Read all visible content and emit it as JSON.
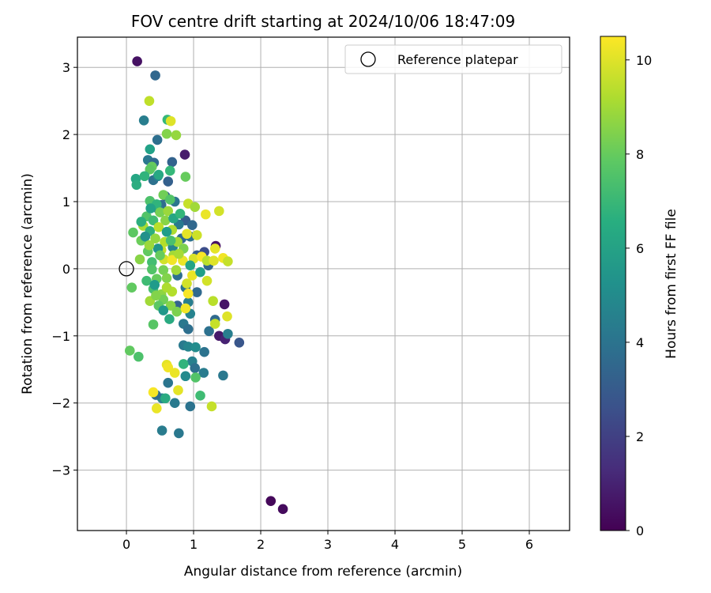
{
  "chart_data": {
    "type": "scatter",
    "title": "FOV centre drift starting at 2024/10/06 18:47:09",
    "xlabel": "Angular distance from reference (arcmin)",
    "ylabel": "Rotation from reference (arcmin)",
    "xlim": [
      -0.73,
      6.6
    ],
    "ylim": [
      -3.9,
      3.45
    ],
    "xticks": [
      0,
      1,
      2,
      3,
      4,
      5,
      6
    ],
    "yticks": [
      -3,
      -2,
      -1,
      0,
      1,
      2,
      3
    ],
    "xtick_labels": [
      "0",
      "1",
      "2",
      "3",
      "4",
      "5",
      "6"
    ],
    "ytick_labels": [
      "−3",
      "−2",
      "−1",
      "0",
      "1",
      "2",
      "3"
    ],
    "grid": true,
    "legend": {
      "placement": "upper-right",
      "entries": [
        "Reference platepar"
      ]
    },
    "reference": {
      "x": 0,
      "y": 0,
      "label": "Reference platepar"
    },
    "colorbar": {
      "label": "Hours from first FF file",
      "colormap": "viridis",
      "range": [
        0,
        10.5
      ],
      "ticks": [
        0,
        2,
        4,
        6,
        8,
        10
      ],
      "tick_labels": [
        "0",
        "2",
        "4",
        "6",
        "8",
        "10"
      ]
    },
    "points": [
      {
        "x": 0.16,
        "y": 3.09,
        "c": 0.5
      },
      {
        "x": 2.15,
        "y": -3.46,
        "c": 0.2
      },
      {
        "x": 2.33,
        "y": -3.58,
        "c": 0.3
      },
      {
        "x": 0.87,
        "y": 1.7,
        "c": 0.8
      },
      {
        "x": 1.33,
        "y": 0.34,
        "c": 0.5
      },
      {
        "x": 1.46,
        "y": -0.53,
        "c": 0.6
      },
      {
        "x": 1.38,
        "y": -1.0,
        "c": 0.7
      },
      {
        "x": 1.47,
        "y": -1.05,
        "c": 1.0
      },
      {
        "x": 1.68,
        "y": -1.1,
        "c": 2.8
      },
      {
        "x": 0.43,
        "y": 2.88,
        "c": 3.5
      },
      {
        "x": 0.26,
        "y": 2.21,
        "c": 4.5
      },
      {
        "x": 0.46,
        "y": 1.92,
        "c": 3.8
      },
      {
        "x": 0.32,
        "y": 1.62,
        "c": 4.2
      },
      {
        "x": 0.41,
        "y": 1.58,
        "c": 3.6
      },
      {
        "x": 0.68,
        "y": 1.59,
        "c": 3.3
      },
      {
        "x": 0.4,
        "y": 1.32,
        "c": 3.9
      },
      {
        "x": 0.47,
        "y": 1.38,
        "c": 4.6
      },
      {
        "x": 0.62,
        "y": 1.3,
        "c": 3.2
      },
      {
        "x": 0.58,
        "y": 1.08,
        "c": 3.4
      },
      {
        "x": 0.72,
        "y": 1.0,
        "c": 4.1
      },
      {
        "x": 0.52,
        "y": 0.95,
        "c": 3.7
      },
      {
        "x": 0.48,
        "y": 0.88,
        "c": 4.4
      },
      {
        "x": 0.88,
        "y": 0.72,
        "c": 3.1
      },
      {
        "x": 0.98,
        "y": 0.65,
        "c": 3.5
      },
      {
        "x": 0.78,
        "y": 0.66,
        "c": 4.3
      },
      {
        "x": 0.82,
        "y": 0.45,
        "c": 3.6
      },
      {
        "x": 0.69,
        "y": 0.32,
        "c": 4.8
      },
      {
        "x": 0.95,
        "y": 0.48,
        "c": 3.9
      },
      {
        "x": 1.05,
        "y": 0.2,
        "c": 3.0
      },
      {
        "x": 1.22,
        "y": 0.05,
        "c": 3.4
      },
      {
        "x": 1.16,
        "y": 0.25,
        "c": 2.5
      },
      {
        "x": 0.76,
        "y": -0.1,
        "c": 3.8
      },
      {
        "x": 0.88,
        "y": -0.28,
        "c": 4.0
      },
      {
        "x": 1.05,
        "y": -0.35,
        "c": 3.6
      },
      {
        "x": 0.92,
        "y": -0.5,
        "c": 4.5
      },
      {
        "x": 0.76,
        "y": -0.55,
        "c": 3.3
      },
      {
        "x": 0.95,
        "y": -0.67,
        "c": 4.7
      },
      {
        "x": 0.85,
        "y": -0.82,
        "c": 4.2
      },
      {
        "x": 0.92,
        "y": -0.9,
        "c": 3.8
      },
      {
        "x": 1.23,
        "y": -0.93,
        "c": 3.9
      },
      {
        "x": 1.32,
        "y": -0.76,
        "c": 3.6
      },
      {
        "x": 1.51,
        "y": -0.97,
        "c": 4.5
      },
      {
        "x": 0.85,
        "y": -1.14,
        "c": 4.3
      },
      {
        "x": 0.92,
        "y": -1.16,
        "c": 4.8
      },
      {
        "x": 1.03,
        "y": -1.17,
        "c": 5.1
      },
      {
        "x": 1.16,
        "y": -1.24,
        "c": 4.0
      },
      {
        "x": 0.98,
        "y": -1.38,
        "c": 4.6
      },
      {
        "x": 1.02,
        "y": -1.48,
        "c": 3.9
      },
      {
        "x": 1.15,
        "y": -1.55,
        "c": 4.4
      },
      {
        "x": 1.44,
        "y": -1.59,
        "c": 4.2
      },
      {
        "x": 0.88,
        "y": -1.6,
        "c": 5.0
      },
      {
        "x": 0.62,
        "y": -1.7,
        "c": 4.1
      },
      {
        "x": 0.53,
        "y": -1.93,
        "c": 4.7
      },
      {
        "x": 0.72,
        "y": -2.0,
        "c": 4.3
      },
      {
        "x": 0.95,
        "y": -2.05,
        "c": 4.0
      },
      {
        "x": 0.53,
        "y": -2.41,
        "c": 4.4
      },
      {
        "x": 0.78,
        "y": -2.45,
        "c": 4.2
      },
      {
        "x": 0.44,
        "y": -1.88,
        "c": 3.7
      },
      {
        "x": 0.61,
        "y": 2.22,
        "c": 7.0
      },
      {
        "x": 0.66,
        "y": 2.2,
        "c": 10.0
      },
      {
        "x": 0.34,
        "y": 2.5,
        "c": 9.5
      },
      {
        "x": 0.6,
        "y": 2.01,
        "c": 8.5
      },
      {
        "x": 0.74,
        "y": 1.99,
        "c": 8.8
      },
      {
        "x": 0.35,
        "y": 1.78,
        "c": 6.0
      },
      {
        "x": 0.38,
        "y": 1.52,
        "c": 8.0
      },
      {
        "x": 0.35,
        "y": 1.48,
        "c": 7.8
      },
      {
        "x": 0.14,
        "y": 1.34,
        "c": 6.2
      },
      {
        "x": 0.15,
        "y": 1.25,
        "c": 6.5
      },
      {
        "x": 0.27,
        "y": 1.38,
        "c": 6.8
      },
      {
        "x": 0.48,
        "y": 1.4,
        "c": 6.3
      },
      {
        "x": 0.65,
        "y": 1.46,
        "c": 7.0
      },
      {
        "x": 0.88,
        "y": 1.37,
        "c": 8.0
      },
      {
        "x": 0.35,
        "y": 1.01,
        "c": 7.5
      },
      {
        "x": 0.55,
        "y": 1.1,
        "c": 8.2
      },
      {
        "x": 0.65,
        "y": 1.03,
        "c": 7.6
      },
      {
        "x": 0.45,
        "y": 0.96,
        "c": 6.8
      },
      {
        "x": 0.92,
        "y": 0.97,
        "c": 9.6
      },
      {
        "x": 1.02,
        "y": 0.92,
        "c": 9.0
      },
      {
        "x": 1.18,
        "y": 0.81,
        "c": 10.2
      },
      {
        "x": 1.38,
        "y": 0.86,
        "c": 9.8
      },
      {
        "x": 0.3,
        "y": 0.78,
        "c": 7.6
      },
      {
        "x": 0.5,
        "y": 0.84,
        "c": 8.3
      },
      {
        "x": 0.62,
        "y": 0.86,
        "c": 8.9
      },
      {
        "x": 0.4,
        "y": 0.72,
        "c": 7.2
      },
      {
        "x": 0.58,
        "y": 0.72,
        "c": 8.6
      },
      {
        "x": 0.25,
        "y": 0.64,
        "c": 9.1
      },
      {
        "x": 0.1,
        "y": 0.54,
        "c": 7.8
      },
      {
        "x": 0.35,
        "y": 0.56,
        "c": 6.6
      },
      {
        "x": 0.48,
        "y": 0.62,
        "c": 9.4
      },
      {
        "x": 0.68,
        "y": 0.58,
        "c": 9.2
      },
      {
        "x": 0.76,
        "y": 0.4,
        "c": 9.0
      },
      {
        "x": 0.9,
        "y": 0.52,
        "c": 10.1
      },
      {
        "x": 1.05,
        "y": 0.5,
        "c": 9.7
      },
      {
        "x": 0.22,
        "y": 0.42,
        "c": 8.1
      },
      {
        "x": 0.43,
        "y": 0.45,
        "c": 8.8
      },
      {
        "x": 0.57,
        "y": 0.4,
        "c": 9.3
      },
      {
        "x": 0.32,
        "y": 0.26,
        "c": 7.9
      },
      {
        "x": 0.52,
        "y": 0.28,
        "c": 9.5
      },
      {
        "x": 0.7,
        "y": 0.2,
        "c": 9.0
      },
      {
        "x": 0.85,
        "y": 0.3,
        "c": 8.4
      },
      {
        "x": 0.2,
        "y": 0.14,
        "c": 8.6
      },
      {
        "x": 0.38,
        "y": 0.1,
        "c": 7.3
      },
      {
        "x": 0.56,
        "y": 0.14,
        "c": 9.8
      },
      {
        "x": 0.68,
        "y": 0.13,
        "c": 10.3
      },
      {
        "x": 0.84,
        "y": 0.12,
        "c": 10.2
      },
      {
        "x": 1.0,
        "y": 0.15,
        "c": 9.9
      },
      {
        "x": 1.12,
        "y": 0.18,
        "c": 10.4
      },
      {
        "x": 1.2,
        "y": 0.12,
        "c": 9.4
      },
      {
        "x": 1.3,
        "y": 0.12,
        "c": 10.0
      },
      {
        "x": 1.44,
        "y": 0.16,
        "c": 10.3
      },
      {
        "x": 1.51,
        "y": 0.11,
        "c": 9.6
      },
      {
        "x": 1.32,
        "y": 0.3,
        "c": 10.1
      },
      {
        "x": 0.38,
        "y": -0.01,
        "c": 7.6
      },
      {
        "x": 0.55,
        "y": -0.02,
        "c": 8.3
      },
      {
        "x": 0.74,
        "y": -0.02,
        "c": 9.0
      },
      {
        "x": 0.98,
        "y": -0.1,
        "c": 10.2
      },
      {
        "x": 1.2,
        "y": -0.18,
        "c": 9.8
      },
      {
        "x": 0.3,
        "y": -0.18,
        "c": 7.2
      },
      {
        "x": 0.45,
        "y": -0.15,
        "c": 8.0
      },
      {
        "x": 0.6,
        "y": -0.14,
        "c": 8.5
      },
      {
        "x": 0.08,
        "y": -0.28,
        "c": 7.9
      },
      {
        "x": 0.4,
        "y": -0.3,
        "c": 7.4
      },
      {
        "x": 0.52,
        "y": -0.38,
        "c": 8.7
      },
      {
        "x": 0.68,
        "y": -0.34,
        "c": 9.3
      },
      {
        "x": 0.92,
        "y": -0.37,
        "c": 10.4
      },
      {
        "x": 0.9,
        "y": -0.22,
        "c": 9.8
      },
      {
        "x": 0.35,
        "y": -0.48,
        "c": 9.0
      },
      {
        "x": 0.55,
        "y": -0.46,
        "c": 8.2
      },
      {
        "x": 0.66,
        "y": -0.55,
        "c": 8.6
      },
      {
        "x": 1.29,
        "y": -0.48,
        "c": 9.4
      },
      {
        "x": 0.48,
        "y": -0.55,
        "c": 7.8
      },
      {
        "x": 0.75,
        "y": -0.64,
        "c": 8.4
      },
      {
        "x": 0.88,
        "y": -0.59,
        "c": 10.3
      },
      {
        "x": 1.5,
        "y": -0.71,
        "c": 10.0
      },
      {
        "x": 1.32,
        "y": -0.82,
        "c": 9.6
      },
      {
        "x": 0.4,
        "y": -0.83,
        "c": 7.7
      },
      {
        "x": 0.05,
        "y": -1.22,
        "c": 7.9
      },
      {
        "x": 0.18,
        "y": -1.31,
        "c": 7.5
      },
      {
        "x": 0.85,
        "y": -1.42,
        "c": 6.8
      },
      {
        "x": 0.6,
        "y": -1.43,
        "c": 10.1
      },
      {
        "x": 0.62,
        "y": -1.47,
        "c": 10.3
      },
      {
        "x": 0.72,
        "y": -1.55,
        "c": 10.2
      },
      {
        "x": 1.03,
        "y": -1.62,
        "c": 7.6
      },
      {
        "x": 0.77,
        "y": -1.81,
        "c": 10.1
      },
      {
        "x": 0.4,
        "y": -1.84,
        "c": 10.4
      },
      {
        "x": 1.1,
        "y": -1.89,
        "c": 7.2
      },
      {
        "x": 0.58,
        "y": -1.93,
        "c": 6.4
      },
      {
        "x": 1.27,
        "y": -2.05,
        "c": 9.6
      },
      {
        "x": 0.45,
        "y": -2.08,
        "c": 10.2
      },
      {
        "x": 0.47,
        "y": 0.3,
        "c": 5.5
      },
      {
        "x": 0.6,
        "y": 0.55,
        "c": 5.8
      },
      {
        "x": 0.36,
        "y": 0.9,
        "c": 6.0
      },
      {
        "x": 0.7,
        "y": 0.75,
        "c": 6.2
      },
      {
        "x": 0.55,
        "y": -0.62,
        "c": 5.6
      },
      {
        "x": 0.64,
        "y": -0.75,
        "c": 6.4
      },
      {
        "x": 1.1,
        "y": -0.05,
        "c": 5.9
      },
      {
        "x": 0.95,
        "y": 0.05,
        "c": 6.1
      },
      {
        "x": 0.28,
        "y": 0.48,
        "c": 5.3
      },
      {
        "x": 0.42,
        "y": -0.24,
        "c": 5.7
      },
      {
        "x": 0.22,
        "y": 0.7,
        "c": 6.6
      },
      {
        "x": 0.8,
        "y": 0.82,
        "c": 6.9
      },
      {
        "x": 0.66,
        "y": 0.42,
        "c": 7.4
      },
      {
        "x": 0.5,
        "y": 0.2,
        "c": 8.0
      },
      {
        "x": 0.34,
        "y": 0.35,
        "c": 8.9
      },
      {
        "x": 0.78,
        "y": 0.22,
        "c": 9.1
      },
      {
        "x": 0.44,
        "y": -0.4,
        "c": 8.5
      },
      {
        "x": 0.6,
        "y": -0.28,
        "c": 9.2
      }
    ]
  }
}
